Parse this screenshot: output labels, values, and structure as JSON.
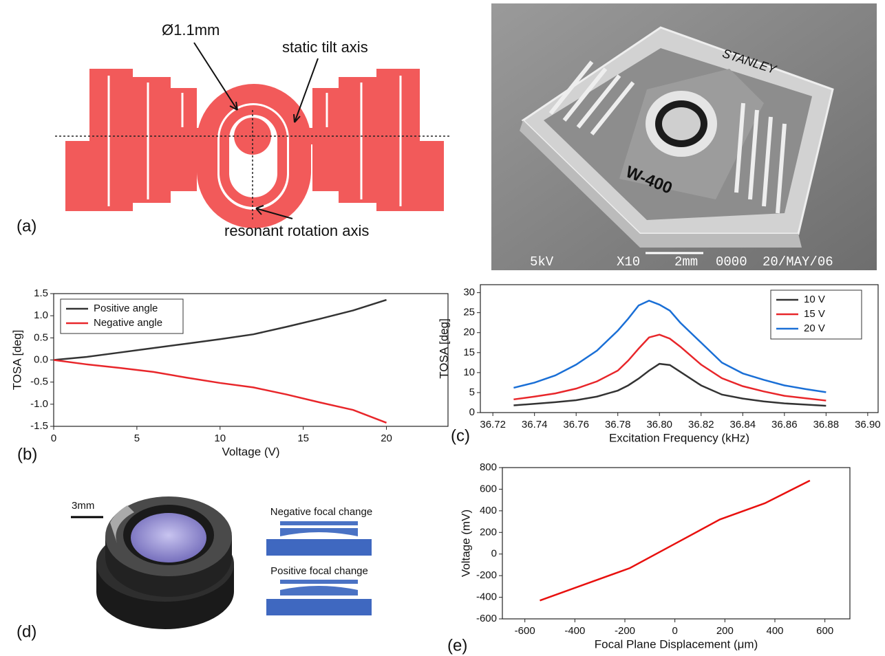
{
  "diagram": {
    "label": "(a)",
    "diameter": "Ø1.1mm",
    "tilt_axis": "static tilt axis",
    "rotation_axis": "resonant rotation axis"
  },
  "micrograph": {
    "brand": "STANLEY",
    "model": "W-400",
    "voltage": "5kV",
    "magnification": "X10",
    "scale": "2mm",
    "number": "0000",
    "date": "20/MAY/06"
  },
  "lens": {
    "label": "(d)",
    "scale": "3mm",
    "negative": "Negative focal change",
    "positive": "Positive focal change"
  },
  "chart_data": [
    {
      "type": "line",
      "panel_label": "(b)",
      "x_label": "Voltage (V)",
      "y_label": "TOSA [deg]",
      "x": [
        0,
        2,
        4,
        6,
        8,
        10,
        12,
        14,
        16,
        18,
        20
      ],
      "series": [
        {
          "name": "Positive angle",
          "color": "#333333",
          "values": [
            0,
            0.07,
            0.17,
            0.27,
            0.37,
            0.47,
            0.58,
            0.75,
            0.93,
            1.12,
            1.36
          ]
        },
        {
          "name": "Negative angle",
          "color": "#e8262a",
          "values": [
            0,
            -0.1,
            -0.18,
            -0.27,
            -0.4,
            -0.52,
            -0.62,
            -0.78,
            -0.96,
            -1.13,
            -1.42
          ]
        }
      ],
      "xlim": [
        0,
        23.7
      ],
      "xticks": [
        0,
        5,
        10,
        15,
        20
      ],
      "ylim": [
        -1.5,
        1.5
      ],
      "yticks": [
        -1.5,
        {
          "value": -1,
          "label": "-1.0"
        },
        -0.5,
        {
          "value": 0,
          "label": "0.0"
        },
        0.5,
        {
          "value": 1,
          "label": "1.0"
        },
        1.5
      ],
      "legend": "upper left"
    },
    {
      "type": "line",
      "panel_label": "(c)",
      "x_label": "Excitation Frequency (kHz)",
      "y_label": "TOSA [deg]",
      "x": [
        36.73,
        36.74,
        36.75,
        36.76,
        36.77,
        36.78,
        36.785,
        36.79,
        36.795,
        36.8,
        36.805,
        36.81,
        36.82,
        36.83,
        36.84,
        36.85,
        36.86,
        36.87,
        36.88
      ],
      "series": [
        {
          "name": "10 V",
          "color": "#333333",
          "values": [
            1.8,
            2.2,
            2.6,
            3.1,
            4.0,
            5.5,
            6.8,
            8.5,
            10.5,
            12.2,
            11.9,
            10.2,
            6.8,
            4.5,
            3.5,
            2.8,
            2.3,
            2.0,
            1.7
          ]
        },
        {
          "name": "15 V",
          "color": "#e8262a",
          "values": [
            3.3,
            4.0,
            4.8,
            6.0,
            7.8,
            10.5,
            13,
            16,
            18.8,
            19.5,
            18.5,
            16.5,
            12,
            8.6,
            6.6,
            5.3,
            4.2,
            3.6,
            3.0
          ]
        },
        {
          "name": "20 V",
          "color": "#1a6fd6",
          "values": [
            6.2,
            7.5,
            9.3,
            12,
            15.5,
            20.5,
            23.5,
            26.8,
            28,
            27,
            25.5,
            22.5,
            17.5,
            12.5,
            9.8,
            8.2,
            6.8,
            5.9,
            5.1
          ]
        }
      ],
      "xlim": [
        36.714,
        36.905
      ],
      "xticks": [
        36.72,
        36.74,
        36.76,
        36.78,
        {
          "value": 36.8,
          "label": "36.80"
        },
        36.82,
        36.84,
        36.86,
        36.88,
        {
          "value": 36.9,
          "label": "36.90"
        }
      ],
      "ylim": [
        0,
        32
      ],
      "yticks": [
        0,
        5,
        10,
        15,
        20,
        25,
        30
      ],
      "legend": "upper right"
    },
    {
      "type": "line",
      "panel_label": "(e)",
      "x_label": "Focal Plane Displacement (μm)",
      "y_label": "Voltage (mV)",
      "x": [
        -540,
        -360,
        -180,
        0,
        180,
        360,
        540
      ],
      "series": [
        {
          "color": "#e8100e",
          "values": [
            -430,
            -280,
            -130,
            95,
            320,
            470,
            680
          ]
        }
      ],
      "xlim": [
        -690,
        700
      ],
      "xticks": [
        -600,
        -400,
        -200,
        0,
        200,
        400,
        600
      ],
      "ylim": [
        -600,
        800
      ],
      "yticks": [
        -600,
        -400,
        -200,
        0,
        200,
        400,
        600,
        800
      ]
    }
  ]
}
